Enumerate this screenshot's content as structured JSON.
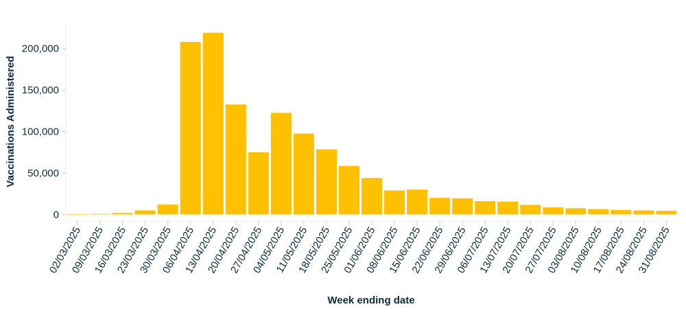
{
  "chart_data": {
    "type": "bar",
    "xlabel": "Week ending date",
    "ylabel": "Vaccinations Administered",
    "ylim": [
      -8000,
      232000
    ],
    "yticks": [
      0,
      50000,
      100000,
      150000,
      200000
    ],
    "ytick_labels": [
      "0",
      "50,000",
      "100,000",
      "150,000",
      "200,000"
    ],
    "bar_color": "#ffc000",
    "categories": [
      "02/03/2025",
      "09/03/2025",
      "16/03/2025",
      "23/03/2025",
      "30/03/2025",
      "06/04/2025",
      "13/04/2025",
      "20/04/2025",
      "27/04/2025",
      "04/05/2025",
      "11/05/2025",
      "18/05/2025",
      "25/05/2025",
      "01/06/2025",
      "08/06/2025",
      "15/06/2025",
      "22/06/2025",
      "29/06/2025",
      "06/07/2025",
      "13/07/2025",
      "20/07/2025",
      "27/07/2025",
      "03/08/2025",
      "10/08/2025",
      "17/08/2025",
      "24/08/2025",
      "31/08/2025"
    ],
    "values": [
      500,
      700,
      1800,
      5000,
      12000,
      208000,
      219000,
      132500,
      75000,
      122500,
      97500,
      78500,
      58500,
      44000,
      29000,
      30000,
      20000,
      19500,
      16000,
      15500,
      11500,
      8500,
      7500,
      6500,
      5500,
      4800,
      4500
    ],
    "grid": false,
    "legend": "none"
  }
}
